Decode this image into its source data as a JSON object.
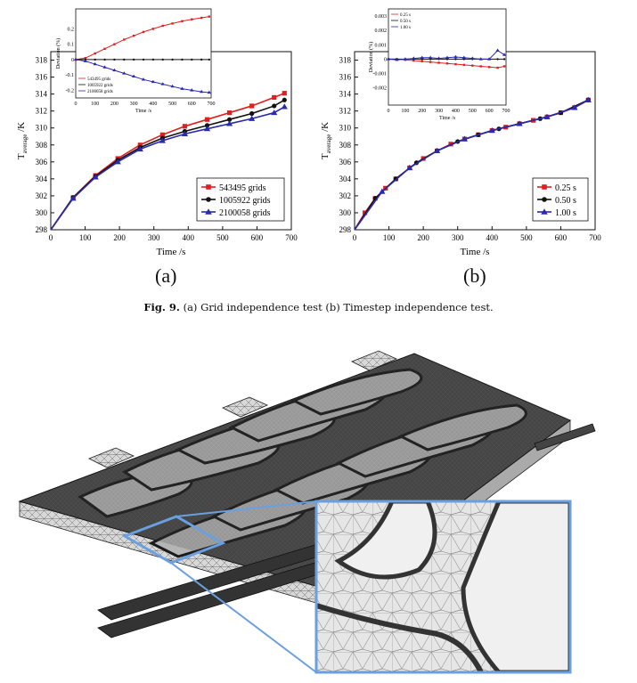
{
  "chart_data": [
    {
      "type": "line",
      "panel": "a",
      "xlabel": "Time /s",
      "ylabel": "T",
      "ylabel_sub": "average",
      "ylabel_unit": "/K",
      "xlim": [
        0,
        700
      ],
      "ylim": [
        298,
        319
      ],
      "xticks": [
        0,
        100,
        200,
        300,
        400,
        500,
        600,
        700
      ],
      "yticks": [
        298,
        300,
        302,
        304,
        306,
        308,
        310,
        312,
        314,
        316,
        318
      ],
      "legend_position": "bottom-right",
      "series": [
        {
          "name": "543495 grids",
          "color": "#e02020",
          "marker": "square",
          "x": [
            0,
            65,
            130,
            195,
            260,
            325,
            390,
            455,
            520,
            585,
            650,
            680
          ],
          "y": [
            298,
            301.8,
            304.4,
            306.4,
            308.0,
            309.2,
            310.2,
            311.0,
            311.8,
            312.6,
            313.6,
            314.1
          ]
        },
        {
          "name": "1005922 grids",
          "color": "#111111",
          "marker": "circle",
          "x": [
            0,
            65,
            130,
            195,
            260,
            325,
            390,
            455,
            520,
            585,
            650,
            680
          ],
          "y": [
            298,
            301.8,
            304.3,
            306.2,
            307.7,
            308.8,
            309.6,
            310.3,
            311.0,
            311.7,
            312.6,
            313.3
          ]
        },
        {
          "name": "2100058 grids",
          "color": "#2a2ab0",
          "marker": "triangle",
          "x": [
            0,
            65,
            130,
            195,
            260,
            325,
            390,
            455,
            520,
            585,
            650,
            680
          ],
          "y": [
            298,
            301.7,
            304.2,
            306.0,
            307.5,
            308.5,
            309.3,
            309.9,
            310.5,
            311.1,
            311.8,
            312.5
          ]
        }
      ],
      "inset": {
        "xlabel": "Time /s",
        "ylabel": "Deviation (%)",
        "xlim": [
          0,
          700
        ],
        "ylim": [
          -0.25,
          0.33
        ],
        "xticks": [
          0,
          100,
          200,
          300,
          400,
          500,
          600,
          700
        ],
        "yticks": [
          -0.2,
          -0.1,
          0.0,
          0.1,
          0.2
        ],
        "series": [
          {
            "name": "543495 grids",
            "color": "#e02020",
            "x": [
              0,
              50,
              100,
              150,
              200,
              250,
              300,
              350,
              400,
              450,
              500,
              550,
              600,
              650,
              690
            ],
            "y": [
              0,
              0.01,
              0.04,
              0.07,
              0.1,
              0.13,
              0.155,
              0.18,
              0.2,
              0.22,
              0.235,
              0.25,
              0.262,
              0.272,
              0.28
            ]
          },
          {
            "name": "1005922 grids",
            "color": "#111111",
            "x": [
              0,
              50,
              100,
              150,
              200,
              250,
              300,
              350,
              400,
              450,
              500,
              550,
              600,
              650,
              690
            ],
            "y": [
              0,
              0,
              0,
              0,
              0,
              0,
              0,
              0,
              0,
              0,
              0,
              0,
              0,
              0,
              0
            ]
          },
          {
            "name": "2100058 grids",
            "color": "#2a2ab0",
            "x": [
              0,
              50,
              100,
              150,
              200,
              250,
              300,
              350,
              400,
              450,
              500,
              550,
              600,
              650,
              690
            ],
            "y": [
              0,
              -0.01,
              -0.03,
              -0.05,
              -0.07,
              -0.09,
              -0.11,
              -0.13,
              -0.145,
              -0.16,
              -0.175,
              -0.19,
              -0.2,
              -0.21,
              -0.215
            ]
          }
        ]
      }
    },
    {
      "type": "line",
      "panel": "b",
      "xlabel": "Time /s",
      "ylabel": "T",
      "ylabel_sub": "average",
      "ylabel_unit": "/K",
      "xlim": [
        0,
        700
      ],
      "ylim": [
        298,
        319
      ],
      "xticks": [
        0,
        100,
        200,
        300,
        400,
        500,
        600,
        700
      ],
      "yticks": [
        298,
        300,
        302,
        304,
        306,
        308,
        310,
        312,
        314,
        316,
        318
      ],
      "legend_position": "bottom-right",
      "series": [
        {
          "name": "0.25 s",
          "color": "#e02020",
          "marker": "square",
          "x": [
            0,
            30,
            60,
            90,
            120,
            160,
            200,
            240,
            280,
            320,
            360,
            400,
            440,
            480,
            520,
            560,
            600,
            640,
            680
          ],
          "y": [
            298,
            300.0,
            301.7,
            302.9,
            304.0,
            305.3,
            306.4,
            307.3,
            308.1,
            308.7,
            309.2,
            309.7,
            310.1,
            310.5,
            310.9,
            311.3,
            311.8,
            312.4,
            313.3
          ]
        },
        {
          "name": "0.50 s",
          "color": "#111111",
          "marker": "circle",
          "x": [
            0,
            60,
            120,
            180,
            240,
            300,
            360,
            420,
            480,
            540,
            600,
            680
          ],
          "y": [
            298,
            301.7,
            304.0,
            305.9,
            307.3,
            308.4,
            309.2,
            309.9,
            310.5,
            311.1,
            311.8,
            313.3
          ]
        },
        {
          "name": "1.00 s",
          "color": "#2a2ab0",
          "marker": "triangle",
          "x": [
            0,
            80,
            160,
            240,
            320,
            400,
            480,
            560,
            640,
            680
          ],
          "y": [
            298,
            302.5,
            305.3,
            307.3,
            308.7,
            309.7,
            310.5,
            311.3,
            312.4,
            313.3
          ]
        }
      ],
      "inset": {
        "xlabel": "Time /s",
        "ylabel": "Deviation (%)",
        "xlim": [
          0,
          700
        ],
        "ylim": [
          -0.0032,
          0.0035
        ],
        "xticks": [
          0,
          100,
          200,
          300,
          400,
          500,
          600,
          700
        ],
        "yticks": [
          -0.002,
          -0.001,
          0.0,
          0.001,
          0.002,
          0.003
        ],
        "series": [
          {
            "name": "0.25 s",
            "color": "#e02020",
            "x": [
              0,
              50,
              100,
              150,
              200,
              250,
              300,
              350,
              400,
              450,
              500,
              550,
              600,
              650,
              690
            ],
            "y": [
              0,
              0,
              -5e-05,
              -0.0001,
              -0.00015,
              -0.0002,
              -0.00025,
              -0.0003,
              -0.00035,
              -0.0004,
              -0.00045,
              -0.0005,
              -0.00055,
              -0.0006,
              -0.0005
            ]
          },
          {
            "name": "0.50 s",
            "color": "#111111",
            "x": [
              0,
              50,
              100,
              150,
              200,
              250,
              300,
              350,
              400,
              450,
              500,
              550,
              600,
              650,
              690
            ],
            "y": [
              0,
              0,
              0,
              0,
              0,
              0,
              0,
              0,
              0,
              0,
              0,
              0,
              0,
              0,
              0
            ]
          },
          {
            "name": "1.00 s",
            "color": "#2a2ab0",
            "x": [
              0,
              50,
              100,
              150,
              200,
              250,
              300,
              350,
              400,
              450,
              500,
              550,
              600,
              650,
              690
            ],
            "y": [
              0,
              -5e-05,
              0,
              5e-05,
              0.0001,
              0.0001,
              5e-05,
              0.0001,
              0.00015,
              0.0001,
              5e-05,
              0,
              0,
              0.0006,
              0.0003
            ]
          }
        ]
      }
    }
  ],
  "panel_labels": {
    "a": "(a)",
    "b": "(b)"
  },
  "caption": {
    "prefix": "Fig. 9.",
    "text": "(a) Grid independence test (b) Timestep independence test."
  },
  "colors": {
    "red": "#e02020",
    "black": "#111111",
    "blue": "#2a2ab0",
    "zoom_frame": "#6aa0e0"
  },
  "mesh_figure_icon": "mesh-geometry-icon"
}
